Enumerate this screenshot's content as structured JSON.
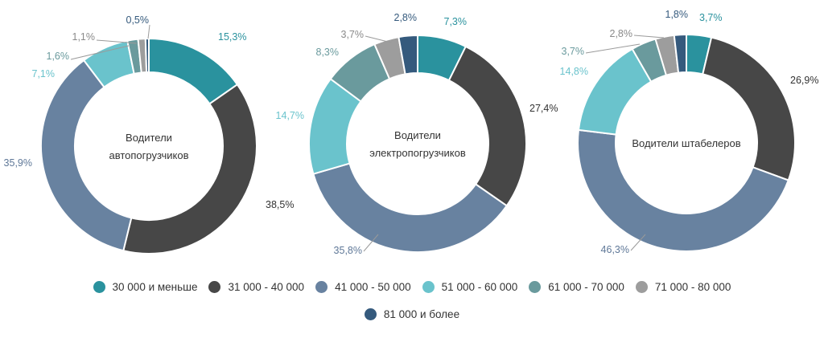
{
  "chart_data": {
    "type": "donut",
    "categories": [
      "30 000 и меньше",
      "31 000 - 40 000",
      "41 000 - 50 000",
      "51 000 - 60 000",
      "61 000 - 70 000",
      "71 000 - 80 000",
      "81 000 и более"
    ],
    "colors": [
      "#2a929e",
      "#474747",
      "#6882a0",
      "#6ac3cc",
      "#6a9a9d",
      "#9d9d9d",
      "#355a7d"
    ],
    "charts": [
      {
        "title": [
          "Водители",
          "автопогрузчиков"
        ],
        "values": [
          15.3,
          38.5,
          35.9,
          7.1,
          1.6,
          1.1,
          0.5
        ],
        "labels": [
          "15,3%",
          "38,5%",
          "35,9%",
          "7,1%",
          "1,6%",
          "1,1%",
          "0,5%"
        ]
      },
      {
        "title": [
          "Водители",
          "электропогрузчиков"
        ],
        "values": [
          7.3,
          27.4,
          35.8,
          14.7,
          8.3,
          3.7,
          2.8
        ],
        "labels": [
          "7,3%",
          "27,4%",
          "35,8%",
          "14,7%",
          "8,3%",
          "3,7%",
          "2,8%"
        ]
      },
      {
        "title": [
          "Водители штабелеров"
        ],
        "values": [
          3.7,
          26.9,
          46.3,
          14.8,
          3.7,
          2.8,
          1.8
        ],
        "labels": [
          "3,7%",
          "26,9%",
          "46,3%",
          "14,8%",
          "3,7%",
          "2,8%",
          "1,8%"
        ]
      }
    ]
  }
}
